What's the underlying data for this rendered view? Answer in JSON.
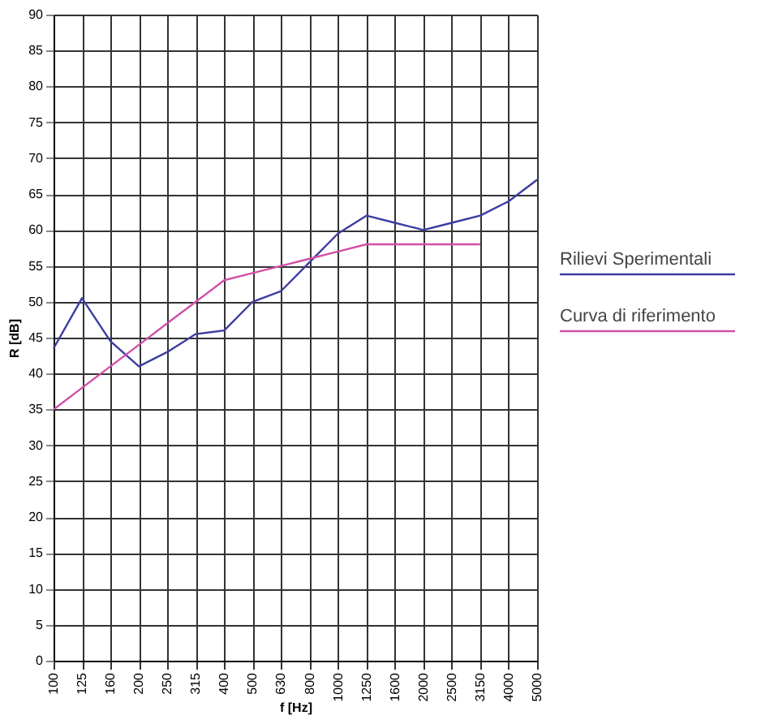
{
  "chart_data": {
    "type": "line",
    "xlabel": "f [Hz]",
    "ylabel": "R [dB]",
    "categories": [
      "100",
      "125",
      "160",
      "200",
      "250",
      "315",
      "400",
      "500",
      "630",
      "800",
      "1000",
      "1250",
      "1600",
      "2000",
      "2500",
      "3150",
      "4000",
      "5000"
    ],
    "series": [
      {
        "name": "Rilievi Sperimentali",
        "color": "#3c3ca0",
        "values": [
          43.5,
          50.5,
          44.5,
          41,
          43,
          45.5,
          46,
          50,
          51.5,
          55.5,
          59.5,
          62,
          61,
          60,
          61,
          62,
          64,
          67
        ]
      },
      {
        "name": "Curva di riferimento",
        "color": "#d04fa8",
        "values": [
          35,
          38,
          41,
          44,
          47,
          50,
          53,
          54,
          55,
          56,
          57,
          58,
          58,
          58,
          58,
          58,
          null,
          null
        ]
      }
    ],
    "ylim": [
      0,
      90
    ],
    "yticks": [
      0,
      5,
      10,
      15,
      20,
      25,
      30,
      35,
      40,
      45,
      50,
      55,
      60,
      65,
      70,
      75,
      80,
      85,
      90
    ],
    "grid": true,
    "legend": "right",
    "marker": "none",
    "line_style": "solid"
  }
}
